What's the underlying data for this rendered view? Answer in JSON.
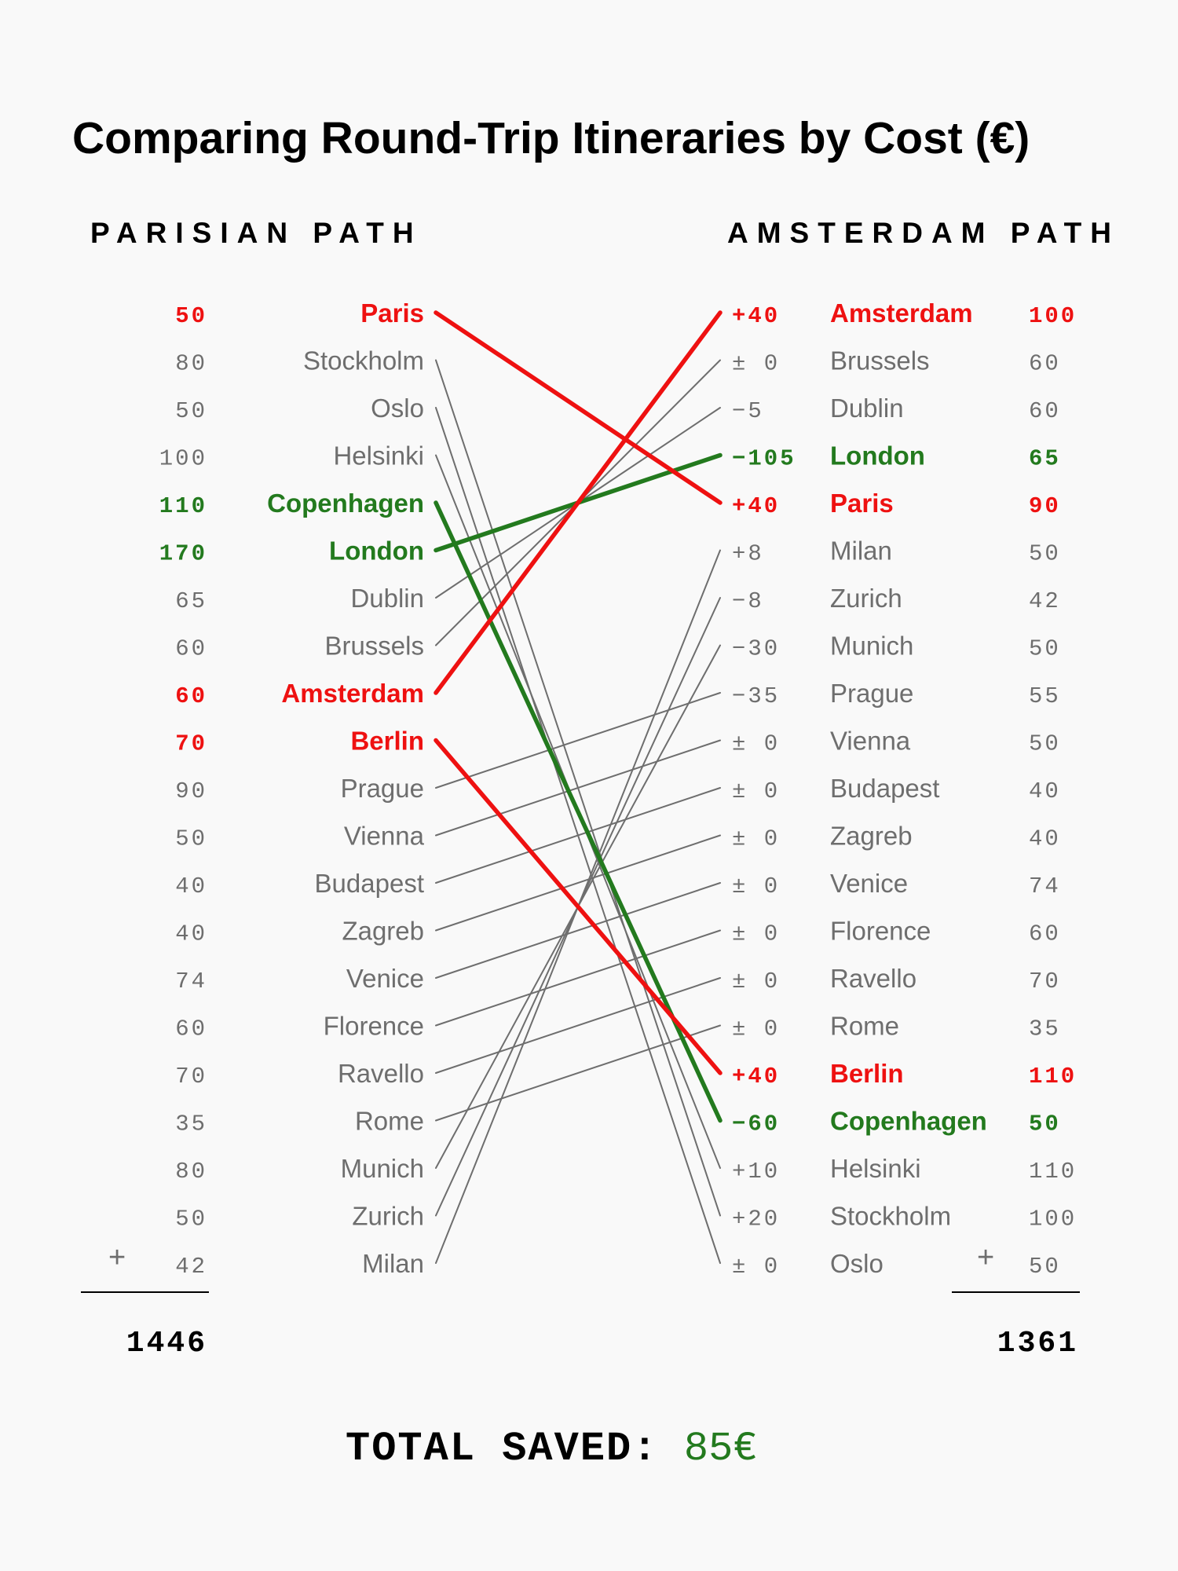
{
  "colors": {
    "red": "#ee1111",
    "green": "#237a1e",
    "gray": "#6e6e6e",
    "black": "#000000"
  },
  "chart_data": {
    "type": "slope",
    "title": "Comparing Round-Trip Itineraries by Cost (€)",
    "left_header": "PARISIAN PATH",
    "right_header": "AMSTERDAM PATH",
    "left": [
      {
        "city": "Paris",
        "cost": "50",
        "style": "red"
      },
      {
        "city": "Stockholm",
        "cost": "80",
        "style": "gray"
      },
      {
        "city": "Oslo",
        "cost": "50",
        "style": "gray"
      },
      {
        "city": "Helsinki",
        "cost": "100",
        "style": "gray"
      },
      {
        "city": "Copenhagen",
        "cost": "110",
        "style": "green"
      },
      {
        "city": "London",
        "cost": "170",
        "style": "green"
      },
      {
        "city": "Dublin",
        "cost": "65",
        "style": "gray"
      },
      {
        "city": "Brussels",
        "cost": "60",
        "style": "gray"
      },
      {
        "city": "Amsterdam",
        "cost": "60",
        "style": "red"
      },
      {
        "city": "Berlin",
        "cost": "70",
        "style": "red"
      },
      {
        "city": "Prague",
        "cost": "90",
        "style": "gray"
      },
      {
        "city": "Vienna",
        "cost": "50",
        "style": "gray"
      },
      {
        "city": "Budapest",
        "cost": "40",
        "style": "gray"
      },
      {
        "city": "Zagreb",
        "cost": "40",
        "style": "gray"
      },
      {
        "city": "Venice",
        "cost": "74",
        "style": "gray"
      },
      {
        "city": "Florence",
        "cost": "60",
        "style": "gray"
      },
      {
        "city": "Ravello",
        "cost": "70",
        "style": "gray"
      },
      {
        "city": "Rome",
        "cost": "35",
        "style": "gray"
      },
      {
        "city": "Munich",
        "cost": "80",
        "style": "gray"
      },
      {
        "city": "Zurich",
        "cost": "50",
        "style": "gray"
      },
      {
        "city": "Milan",
        "cost": "42",
        "style": "gray"
      }
    ],
    "right": [
      {
        "city": "Amsterdam",
        "cost": "100",
        "delta": "+40",
        "style": "red"
      },
      {
        "city": "Brussels",
        "cost": "60",
        "delta": "± 0",
        "style": "gray"
      },
      {
        "city": "Dublin",
        "cost": "60",
        "delta": "−5",
        "style": "gray"
      },
      {
        "city": "London",
        "cost": "65",
        "delta": "−105",
        "style": "green"
      },
      {
        "city": "Paris",
        "cost": "90",
        "delta": "+40",
        "style": "red"
      },
      {
        "city": "Milan",
        "cost": "50",
        "delta": "+8",
        "style": "gray"
      },
      {
        "city": "Zurich",
        "cost": "42",
        "delta": "−8",
        "style": "gray"
      },
      {
        "city": "Munich",
        "cost": "50",
        "delta": "−30",
        "style": "gray"
      },
      {
        "city": "Prague",
        "cost": "55",
        "delta": "−35",
        "style": "gray"
      },
      {
        "city": "Vienna",
        "cost": "50",
        "delta": "± 0",
        "style": "gray"
      },
      {
        "city": "Budapest",
        "cost": "40",
        "delta": "± 0",
        "style": "gray"
      },
      {
        "city": "Zagreb",
        "cost": "40",
        "delta": "± 0",
        "style": "gray"
      },
      {
        "city": "Venice",
        "cost": "74",
        "delta": "± 0",
        "style": "gray"
      },
      {
        "city": "Florence",
        "cost": "60",
        "delta": "± 0",
        "style": "gray"
      },
      {
        "city": "Ravello",
        "cost": "70",
        "delta": "± 0",
        "style": "gray"
      },
      {
        "city": "Rome",
        "cost": "35",
        "delta": "± 0",
        "style": "gray"
      },
      {
        "city": "Berlin",
        "cost": "110",
        "delta": "+40",
        "style": "red"
      },
      {
        "city": "Copenhagen",
        "cost": "50",
        "delta": "−60",
        "style": "green"
      },
      {
        "city": "Helsinki",
        "cost": "110",
        "delta": "+10",
        "style": "gray"
      },
      {
        "city": "Stockholm",
        "cost": "100",
        "delta": "+20",
        "style": "gray"
      },
      {
        "city": "Oslo",
        "cost": "50",
        "delta": "± 0",
        "style": "gray"
      }
    ],
    "plus_sign": "+",
    "left_total": "1446",
    "right_total": "1361",
    "saved_label": "TOTAL SAVED:",
    "saved_value": "85€"
  }
}
